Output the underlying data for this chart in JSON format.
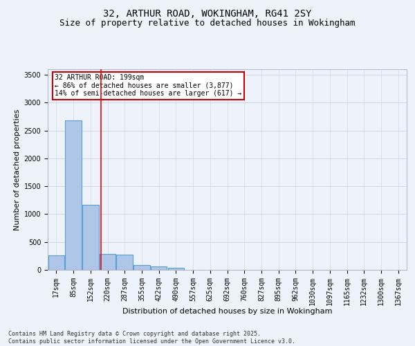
{
  "title_line1": "32, ARTHUR ROAD, WOKINGHAM, RG41 2SY",
  "title_line2": "Size of property relative to detached houses in Wokingham",
  "xlabel": "Distribution of detached houses by size in Wokingham",
  "ylabel": "Number of detached properties",
  "categories": [
    "17sqm",
    "85sqm",
    "152sqm",
    "220sqm",
    "287sqm",
    "355sqm",
    "422sqm",
    "490sqm",
    "557sqm",
    "625sqm",
    "692sqm",
    "760sqm",
    "827sqm",
    "895sqm",
    "962sqm",
    "1030sqm",
    "1097sqm",
    "1165sqm",
    "1232sqm",
    "1300sqm",
    "1367sqm"
  ],
  "values": [
    258,
    2680,
    1170,
    285,
    278,
    93,
    68,
    42,
    5,
    2,
    1,
    1,
    0,
    1,
    0,
    0,
    0,
    0,
    0,
    0,
    0
  ],
  "bar_color": "#aec6e8",
  "bar_edge_color": "#5a9fd4",
  "bar_edge_width": 0.8,
  "grid_color": "#d0d8e8",
  "bg_color": "#eef2fa",
  "red_line_x": 2.62,
  "annotation_text": "32 ARTHUR ROAD: 199sqm\n← 86% of detached houses are smaller (3,877)\n14% of semi-detached houses are larger (617) →",
  "annotation_box_color": "#ffffff",
  "annotation_edge_color": "#cc0000",
  "ylim": [
    0,
    3600
  ],
  "yticks": [
    0,
    500,
    1000,
    1500,
    2000,
    2500,
    3000,
    3500
  ],
  "footer_line1": "Contains HM Land Registry data © Crown copyright and database right 2025.",
  "footer_line2": "Contains public sector information licensed under the Open Government Licence v3.0.",
  "title_fontsize": 10,
  "subtitle_fontsize": 9,
  "tick_fontsize": 7,
  "ylabel_fontsize": 8,
  "xlabel_fontsize": 8,
  "footer_fontsize": 6,
  "annotation_fontsize": 7
}
